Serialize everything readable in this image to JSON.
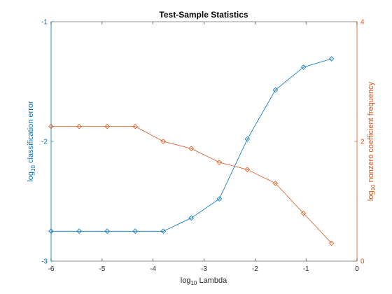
{
  "chart_data": {
    "type": "line",
    "title": "Test-Sample Statistics",
    "xlabel": {
      "base": "log",
      "sub": "10",
      "rest": " Lambda"
    },
    "ylabel_left": {
      "base": "log",
      "sub": "10",
      "rest": " classification error"
    },
    "ylabel_right": {
      "base": "log",
      "sub": "10",
      "rest": " nonzero coefficient frequency"
    },
    "xlim": [
      -6,
      0
    ],
    "ylim_left": [
      -3,
      -1
    ],
    "ylim_right": [
      0,
      4
    ],
    "x_ticks": [
      "-6",
      "-5",
      "-4",
      "-3",
      "-2",
      "-1",
      "0"
    ],
    "y_left_ticks": [
      "-3",
      "-2",
      "-1"
    ],
    "y_right_ticks": [
      "0",
      "2",
      "4"
    ],
    "grid": false,
    "legend": "none",
    "axis_colors": {
      "left": "#0072BD",
      "right": "#D95319"
    },
    "x": [
      -6.0,
      -5.45,
      -4.9,
      -4.35,
      -3.8,
      -3.25,
      -2.7,
      -2.15,
      -1.6,
      -1.05,
      -0.5
    ],
    "series": [
      {
        "axis": "left",
        "marker": "diamond",
        "color": "#0072BD",
        "values": [
          -2.75,
          -2.75,
          -2.75,
          -2.75,
          -2.75,
          -2.64,
          -2.48,
          -1.98,
          -1.57,
          -1.38,
          -1.31
        ]
      },
      {
        "axis": "right",
        "marker": "diamond",
        "color": "#D95319",
        "values": [
          2.25,
          2.25,
          2.25,
          2.25,
          2.0,
          1.88,
          1.65,
          1.53,
          1.3,
          0.8,
          0.3
        ]
      }
    ]
  }
}
